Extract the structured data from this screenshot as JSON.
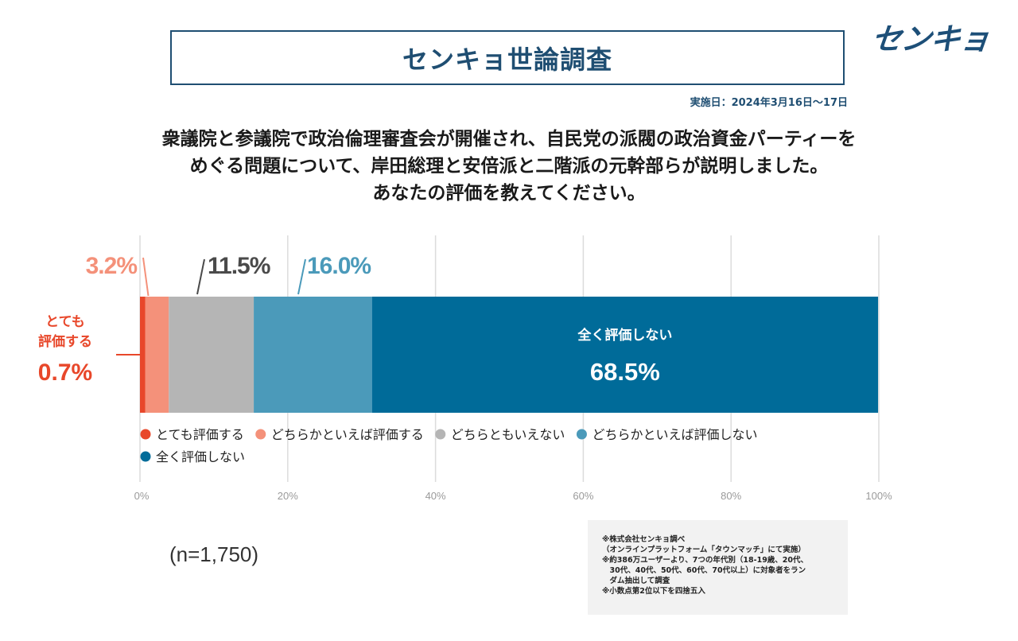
{
  "header": {
    "title": "センキョ世論調査",
    "logo_text": "センキョ",
    "date": "実施日：2024年3月16日～17日"
  },
  "question": {
    "lines": [
      "衆議院と参議院で政治倫理審査会が開催され、自民党の派閥の政治資金パーティーを",
      "めぐる問題について、岸田総理と安倍派と二階派の元幹部らが説明しました。",
      "あなたの評価を教えてください。"
    ]
  },
  "chart_data": {
    "type": "bar",
    "orientation": "horizontal",
    "stacked": true,
    "categories": [
      "とても評価する",
      "どちらかといえば評価する",
      "どちらともいえない",
      "どちらかといえば評価しない",
      "全く評価しない"
    ],
    "values": [
      0.7,
      3.2,
      11.5,
      16.0,
      68.5
    ],
    "value_labels": [
      "0.7%",
      "3.2%",
      "11.5%",
      "16.0%",
      "68.5%"
    ],
    "callout_label": "とても\n評価する",
    "inner_label": "全く評価しない",
    "colors": [
      "#e8472a",
      "#f4917a",
      "#b5b5b5",
      "#4b9aba",
      "#006b99"
    ],
    "xlim": [
      0,
      100
    ],
    "x_ticks": [
      "0%",
      "20%",
      "40%",
      "60%",
      "80%",
      "100%"
    ],
    "grid": true,
    "legend_position": "below-bar"
  },
  "sample": {
    "label": "(n=1,750)"
  },
  "notes": [
    "※株式会社センキョ調べ",
    "（オンラインプラットフォーム「タウンマッチ」にて実施）",
    "※約386万ユーザーより、7つの年代別（18-19歳、20代、",
    "　30代、40代、50代、60代、70代以上）に対象者をラン",
    "　ダム抽出して調査",
    "※小数点第2位以下を四捨五入"
  ]
}
